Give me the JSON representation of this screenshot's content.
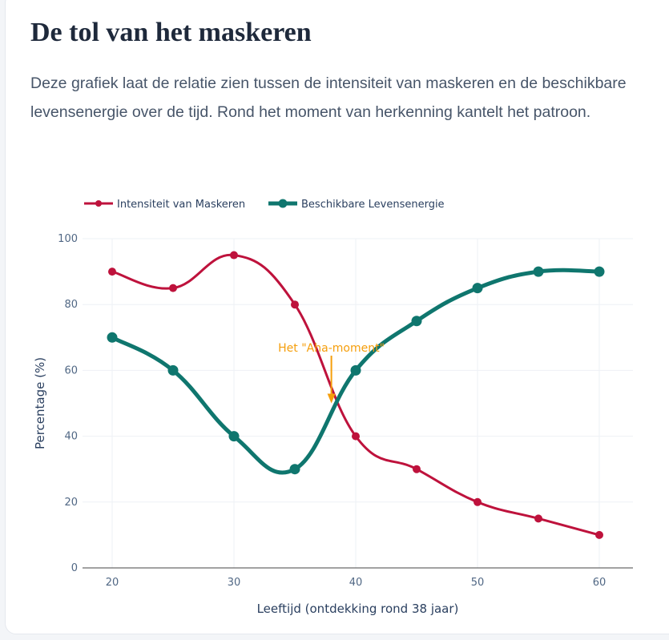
{
  "header": {
    "title": "De tol van het maskeren",
    "description": "Deze grafiek laat de relatie zien tussen de intensiteit van maskeren en de beschikbare levensenergie over de tijd. Rond het moment van herkenning kantelt het patroon."
  },
  "chart_data": {
    "type": "line",
    "x": [
      20,
      25,
      30,
      35,
      40,
      45,
      50,
      55,
      60
    ],
    "series": [
      {
        "name": "Intensiteit van Maskeren",
        "color": "#be123c",
        "values": [
          90,
          85,
          95,
          80,
          40,
          30,
          20,
          15,
          10
        ]
      },
      {
        "name": "Beschikbare Levensenergie",
        "color": "#0f766e",
        "values": [
          70,
          60,
          40,
          30,
          60,
          75,
          85,
          90,
          90
        ]
      }
    ],
    "xlabel": "Leeftijd (ontdekking rond 38 jaar)",
    "ylabel": "Percentage (%)",
    "xlim": [
      17.5,
      62.7
    ],
    "ylim": [
      0,
      100
    ],
    "xticks": [
      20,
      30,
      40,
      50,
      60
    ],
    "yticks": [
      0,
      20,
      40,
      60,
      80,
      100
    ],
    "grid": true,
    "legend": "top-left",
    "annotation": {
      "text": "Het \"Aha-moment\"",
      "x": 38,
      "y": 50,
      "color": "#f59e0b"
    }
  }
}
